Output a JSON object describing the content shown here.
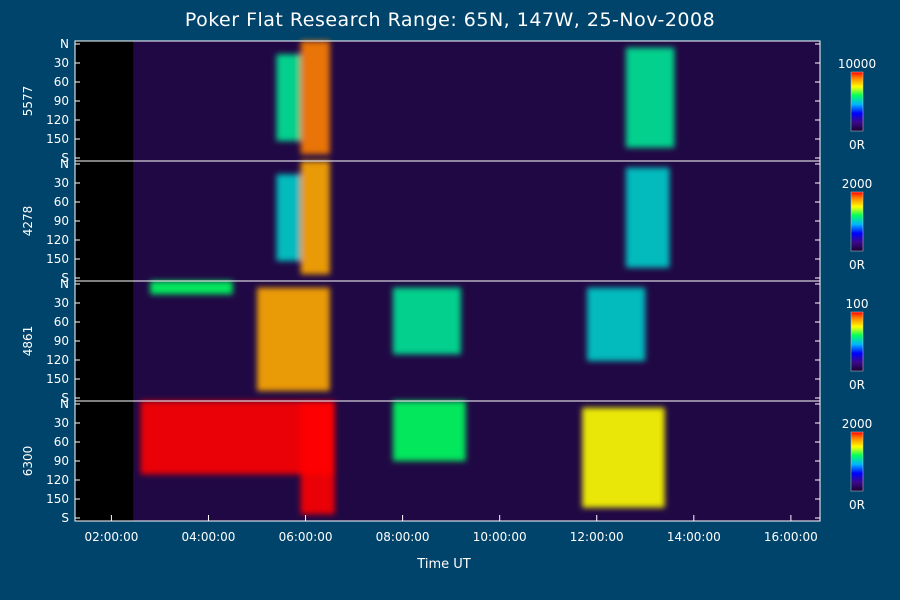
{
  "chart_data": {
    "type": "heatmap",
    "title": "Poker Flat Research Range: 65N, 147W, 25-Nov-2008",
    "xlabel": "Time UT",
    "x_ticks": [
      "02:00:00",
      "04:00:00",
      "06:00:00",
      "08:00:00",
      "10:00:00",
      "12:00:00",
      "14:00:00",
      "16:00:00"
    ],
    "x_range_hours": [
      1.25,
      16.6
    ],
    "y_range_deg": [
      0,
      180
    ],
    "y_ticks": [
      "N",
      "30",
      "60",
      "90",
      "120",
      "150",
      "S"
    ],
    "panels": [
      {
        "ylabel": "5577",
        "scale_max": "10000",
        "scale_min": "0R",
        "features": [
          {
            "t0": 5.4,
            "t1": 5.9,
            "lat": [
              20,
              150
            ],
            "intensity": 0.55
          },
          {
            "t0": 5.9,
            "t1": 6.5,
            "lat": [
              0,
              170
            ],
            "intensity": 0.9
          },
          {
            "t0": 12.6,
            "t1": 13.6,
            "lat": [
              10,
              160
            ],
            "intensity": 0.55
          }
        ]
      },
      {
        "ylabel": "4278",
        "scale_max": "2000",
        "scale_min": "0R",
        "features": [
          {
            "t0": 5.4,
            "t1": 5.9,
            "lat": [
              20,
              150
            ],
            "intensity": 0.5
          },
          {
            "t0": 5.9,
            "t1": 6.5,
            "lat": [
              0,
              170
            ],
            "intensity": 0.85
          },
          {
            "t0": 12.6,
            "t1": 13.5,
            "lat": [
              10,
              160
            ],
            "intensity": 0.5
          }
        ]
      },
      {
        "ylabel": "4861",
        "scale_max": "100",
        "scale_min": "0R",
        "features": [
          {
            "t0": 2.8,
            "t1": 4.5,
            "lat": [
              0,
              20
            ],
            "intensity": 0.6
          },
          {
            "t0": 5.0,
            "t1": 6.5,
            "lat": [
              10,
              165
            ],
            "intensity": 0.85
          },
          {
            "t0": 7.8,
            "t1": 9.2,
            "lat": [
              10,
              110
            ],
            "intensity": 0.55
          },
          {
            "t0": 11.8,
            "t1": 13.0,
            "lat": [
              10,
              120
            ],
            "intensity": 0.5
          }
        ]
      },
      {
        "ylabel": "6300",
        "scale_max": "2000",
        "scale_min": "0R",
        "features": [
          {
            "t0": 2.6,
            "t1": 6.6,
            "lat": [
              0,
              110
            ],
            "intensity": 1.0
          },
          {
            "t0": 5.9,
            "t1": 6.6,
            "lat": [
              0,
              170
            ],
            "intensity": 1.0
          },
          {
            "t0": 7.8,
            "t1": 9.3,
            "lat": [
              0,
              90
            ],
            "intensity": 0.6
          },
          {
            "t0": 11.7,
            "t1": 13.4,
            "lat": [
              10,
              160
            ],
            "intensity": 0.75
          }
        ]
      }
    ]
  }
}
